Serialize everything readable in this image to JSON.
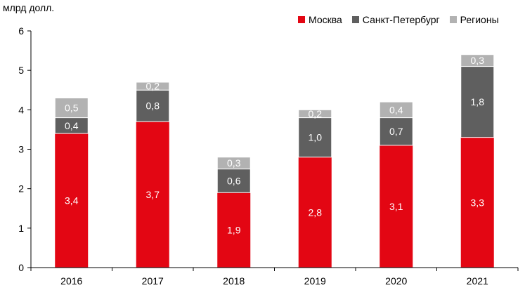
{
  "chart_data": {
    "type": "bar",
    "stacked": true,
    "ylabel": "млрд долл.",
    "ylim": [
      0,
      6
    ],
    "yticks": [
      "0",
      "1",
      "2",
      "3",
      "4",
      "5",
      "6"
    ],
    "categories": [
      "2016",
      "2017",
      "2018",
      "2019",
      "2020",
      "2021"
    ],
    "legend_position": "top-right",
    "grid": false,
    "series": [
      {
        "name": "Москва",
        "color": "#e30613",
        "label_color": "#ffffff",
        "values": [
          3.4,
          3.7,
          1.9,
          2.8,
          3.1,
          3.3
        ],
        "labels": [
          "3,4",
          "3,7",
          "1,9",
          "2,8",
          "3,1",
          "3,3"
        ]
      },
      {
        "name": "Санкт-Петербург",
        "color": "#5f5f5f",
        "label_color": "#ffffff",
        "values": [
          0.4,
          0.8,
          0.6,
          1.0,
          0.7,
          1.8
        ],
        "labels": [
          "0,4",
          "0,8",
          "0,6",
          "1,0",
          "0,7",
          "1,8"
        ]
      },
      {
        "name": "Регионы",
        "color": "#b2b2b2",
        "label_color": "#ffffff",
        "values": [
          0.5,
          0.2,
          0.3,
          0.2,
          0.4,
          0.3
        ],
        "labels": [
          "0,5",
          "0,2",
          "0,3",
          "0,2",
          "0,4",
          "0,3"
        ]
      }
    ]
  }
}
